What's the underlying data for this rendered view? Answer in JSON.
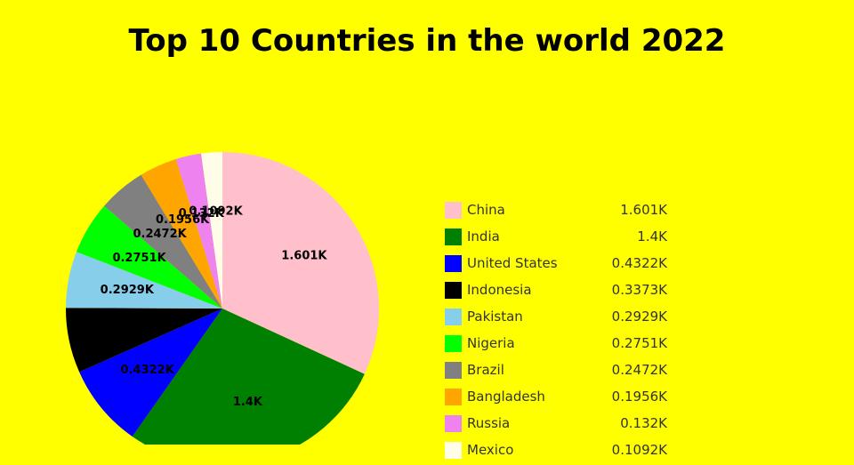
{
  "chart_data": {
    "type": "pie",
    "title": "Top 10 Countries in the world 2022",
    "categories": [
      "China",
      "India",
      "United States",
      "Indonesia",
      "Pakistan",
      "Nigeria",
      "Brazil",
      "Bangladesh",
      "Russia",
      "Mexico"
    ],
    "values": [
      1601,
      1400,
      432.2,
      337.3,
      292.9,
      275.1,
      247.2,
      195.6,
      132,
      109.2
    ],
    "labels": [
      "1.601K",
      "1.4K",
      "0.4322K",
      "0.3373K",
      "0.2929K",
      "0.2751K",
      "0.2472K",
      "0.1956K",
      "0.132K",
      "0.1092K"
    ],
    "colors": [
      "#ffc0cb",
      "#008000",
      "#0000ff",
      "#000000",
      "#87ceeb",
      "#00ff00",
      "#808080",
      "#ffa500",
      "#ee82ee",
      "#fffde7"
    ],
    "legend_position": "right"
  }
}
